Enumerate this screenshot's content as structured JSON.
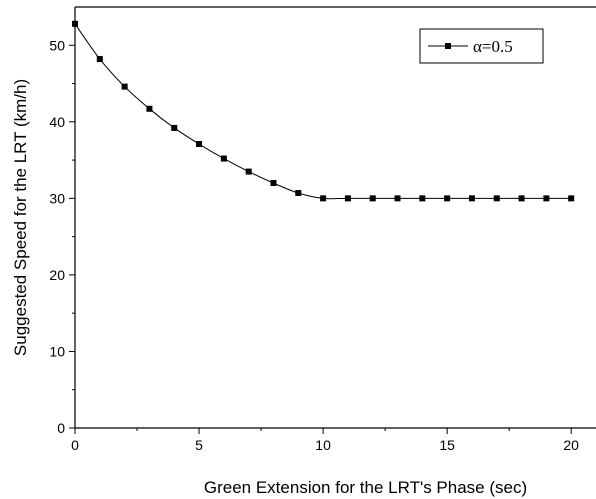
{
  "chart_data": {
    "type": "line",
    "title": "",
    "xlabel": "Green Extension for the LRT's Phase (sec)",
    "ylabel": "Suggested Speed for the LRT (km/h)",
    "xlim": [
      0,
      21
    ],
    "ylim": [
      0,
      55
    ],
    "xticks": [
      0,
      5,
      10,
      15,
      20
    ],
    "yticks": [
      0,
      10,
      20,
      30,
      40,
      50
    ],
    "grid": false,
    "legend_position": "top-right",
    "series": [
      {
        "name": "α=0.5",
        "marker": "square",
        "color": "#000000",
        "x": [
          0,
          1,
          2,
          3,
          4,
          5,
          6,
          7,
          8,
          9,
          10,
          11,
          12,
          13,
          14,
          15,
          16,
          17,
          18,
          19,
          20
        ],
        "y": [
          52.8,
          48.2,
          44.6,
          41.7,
          39.2,
          37.1,
          35.2,
          33.5,
          32.0,
          30.7,
          30.0,
          30.0,
          30.0,
          30.0,
          30.0,
          30.0,
          30.0,
          30.0,
          30.0,
          30.0,
          30.0
        ]
      }
    ]
  }
}
